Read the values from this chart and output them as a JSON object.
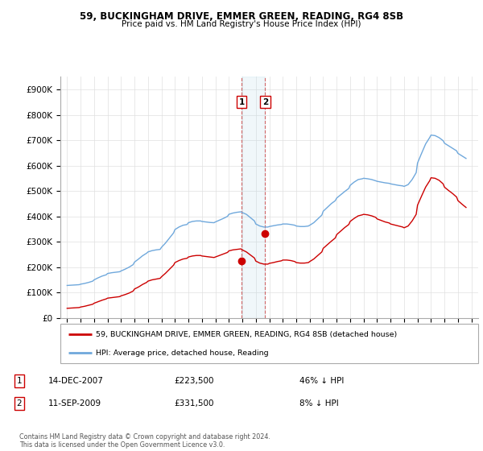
{
  "title": "59, BUCKINGHAM DRIVE, EMMER GREEN, READING, RG4 8SB",
  "subtitle": "Price paid vs. HM Land Registry's House Price Index (HPI)",
  "ylim": [
    0,
    950000
  ],
  "yticks": [
    0,
    100000,
    200000,
    300000,
    400000,
    500000,
    600000,
    700000,
    800000,
    900000
  ],
  "ytick_labels": [
    "£0",
    "£100K",
    "£200K",
    "£300K",
    "£400K",
    "£500K",
    "£600K",
    "£700K",
    "£800K",
    "£900K"
  ],
  "legend_line1": "59, BUCKINGHAM DRIVE, EMMER GREEN, READING, RG4 8SB (detached house)",
  "legend_line2": "HPI: Average price, detached house, Reading",
  "transaction1_date": "14-DEC-2007",
  "transaction1_price": "£223,500",
  "transaction1_hpi": "46% ↓ HPI",
  "transaction2_date": "11-SEP-2009",
  "transaction2_price": "£331,500",
  "transaction2_hpi": "8% ↓ HPI",
  "footer": "Contains HM Land Registry data © Crown copyright and database right 2024.\nThis data is licensed under the Open Government Licence v3.0.",
  "hpi_color": "#6fa8dc",
  "price_color": "#cc0000",
  "transaction1_x": 2007.95,
  "transaction2_x": 2009.7,
  "transaction1_y": 223500,
  "transaction2_y": 331500,
  "shaded_x1": 2007.95,
  "shaded_x2": 2009.7,
  "xmin": 1994.5,
  "xmax": 2025.5
}
